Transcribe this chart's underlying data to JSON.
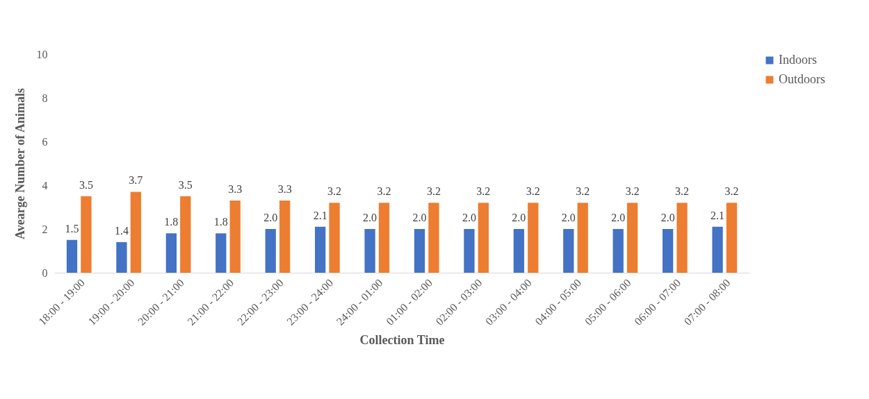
{
  "chart_data": {
    "type": "bar",
    "xlabel": "Collection Time",
    "ylabel": "Avearge Number of Animals",
    "categories": [
      "18:00 - 19:00",
      "19:00 - 20:00",
      "20:00 - 21:00",
      "21:00 - 22:00",
      "22:00 - 23:00",
      "23:00 - 24:00",
      "24:00 - 01:00",
      "01:00 - 02:00",
      "02:00 - 03:00",
      "03:00 - 04:00",
      "04:00 - 05:00",
      "05:00 - 06:00",
      "06:00 - 07:00",
      "07:00 - 08:00"
    ],
    "series": [
      {
        "name": "Indoors",
        "color": "#4472c4",
        "values": [
          1.5,
          1.4,
          1.8,
          1.8,
          2.0,
          2.1,
          2.0,
          2.0,
          2.0,
          2.0,
          2.0,
          2.0,
          2.0,
          2.1
        ],
        "value_labels": [
          "1.5",
          "1.4",
          "1.8",
          "1.8",
          "2.0",
          "2.1",
          "2.0",
          "2.0",
          "2.0",
          "2.0",
          "2.0",
          "2.0",
          "2.0",
          "2.1"
        ]
      },
      {
        "name": "Outdoors",
        "color": "#ed7d31",
        "values": [
          3.5,
          3.7,
          3.5,
          3.3,
          3.3,
          3.2,
          3.2,
          3.2,
          3.2,
          3.2,
          3.2,
          3.2,
          3.2,
          3.2
        ],
        "value_labels": [
          "3.5",
          "3.7",
          "3.5",
          "3.3",
          "3.3",
          "3.2",
          "3.2",
          "3.2",
          "3.2",
          "3.2",
          "3.2",
          "3.2",
          "3.2",
          "3.2"
        ]
      }
    ],
    "ylim": [
      0,
      10
    ],
    "yticks": [
      0,
      2,
      4,
      6,
      8,
      10
    ],
    "grid": false,
    "legend": "right"
  }
}
